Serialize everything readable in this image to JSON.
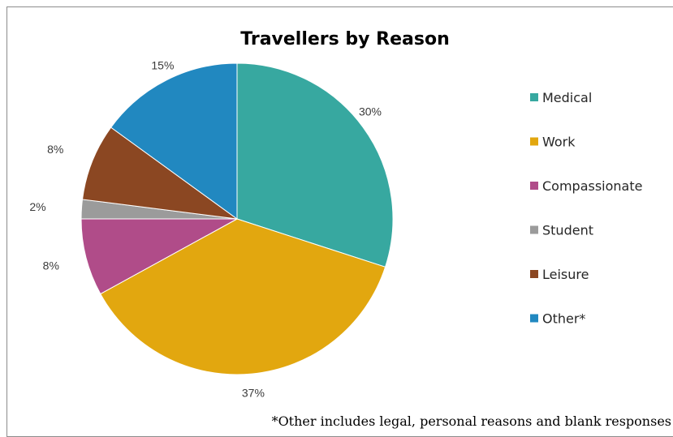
{
  "chart_data": {
    "type": "pie",
    "title": "Travellers by Reason",
    "categories": [
      "Medical",
      "Work",
      "Compassionate",
      "Student",
      "Leisure",
      "Other*"
    ],
    "values": [
      30,
      37,
      8,
      2,
      8,
      15
    ],
    "value_labels": [
      "30%",
      "37%",
      "8%",
      "2%",
      "8%",
      "15%"
    ],
    "colors": [
      "#37a8a0",
      "#e2a70f",
      "#b04c89",
      "#9b9b9b",
      "#8b4722",
      "#2188c0"
    ],
    "legend_placement": "right",
    "start_angle_degrees": 0,
    "direction": "clockwise",
    "footnote": "*Other includes legal, personal reasons and blank responses"
  }
}
